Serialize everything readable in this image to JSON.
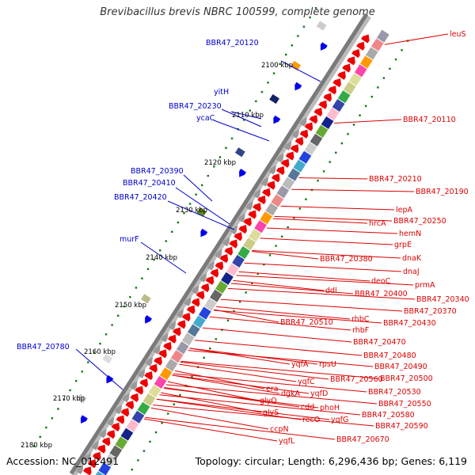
{
  "title": "Brevibacillus brevis NBRC 100599, complete genome",
  "footer": {
    "accession": "Accession: NC_012491",
    "summary": "Topology: circular; Length: 6,296,436 bp; Genes: 6,119"
  },
  "colors": {
    "blue_label": "#0000cc",
    "red_label": "#dd0000",
    "backbone": "#888888",
    "tick_dots": "#117711",
    "forward_feature": "#0000ee",
    "reverse_feature": "#ee0000"
  },
  "scale_labels": [
    "2100 kbp",
    "2110 kbp",
    "2120 kbp",
    "2130 kbp",
    "2140 kbp",
    "2150 kbp",
    "2160 kbp",
    "2170 kbp",
    "2180 kbp"
  ],
  "left_labels": [
    "BBR47_20120",
    "yitH",
    "BBR47_20230",
    "ycaC",
    "BBR47_20390",
    "BBR47_20410",
    "BBR47_20420",
    "murF",
    "BBR47_20780"
  ],
  "right_labels": [
    "leuS",
    "BBR47_20110",
    "BBR47_20210",
    "BBR47_20190",
    "lepA",
    "BBR47_20250",
    "hrcA",
    "hemN",
    "grpE",
    "BBR47_20380",
    "dnaK",
    "dnaJ",
    "deoC",
    "prmA",
    "ddl",
    "BBR47_20400",
    "BBR47_20340",
    "BBR47_20370",
    "rhbC",
    "BBR47_20430",
    "BBR47_20510",
    "rhbF",
    "BBR47_20470",
    "BBR47_20480",
    "yqfA",
    "rpsU",
    "BBR47_20490",
    "yqfC",
    "BBR47_20560",
    "BBR47_20500",
    "era",
    "dgkA",
    "yqfD",
    "BBR47_20530",
    "glyQ",
    "cdd",
    "phoH",
    "BBR47_20550",
    "glyS",
    "recO",
    "yqfG",
    "BBR47_20580",
    "ccpN",
    "BBR47_20590",
    "yqfL",
    "BBR47_20670"
  ]
}
